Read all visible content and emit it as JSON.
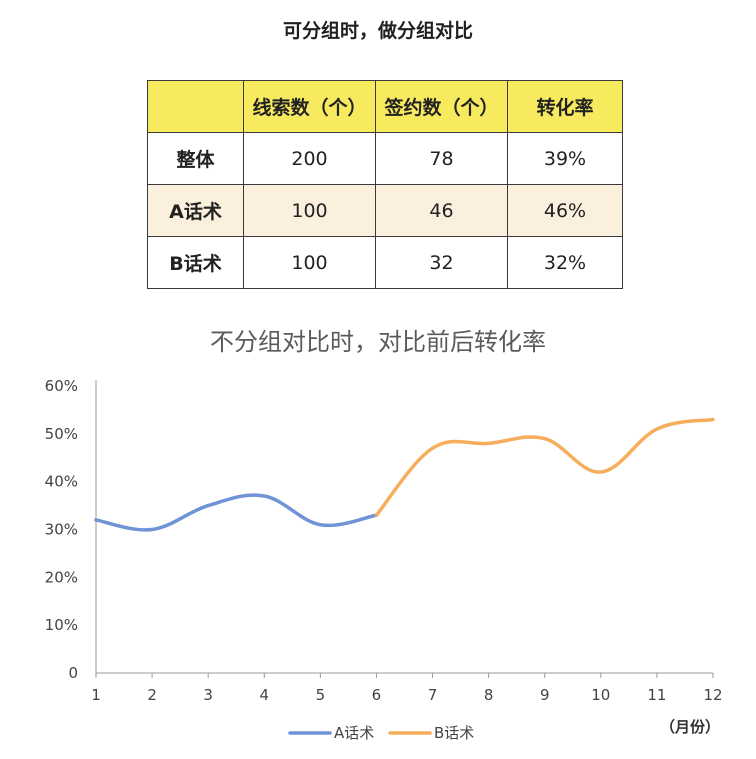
{
  "table": {
    "title": "可分组时，做分组对比",
    "headers": [
      "",
      "线索数（个）",
      "签约数（个）",
      "转化率"
    ],
    "rows": [
      {
        "label": "整体",
        "leads": "200",
        "signed": "78",
        "rate": "39%"
      },
      {
        "label": "A话术",
        "leads": "100",
        "signed": "46",
        "rate": "46%"
      },
      {
        "label": "B话术",
        "leads": "100",
        "signed": "32",
        "rate": "32%"
      }
    ]
  },
  "chart_data": {
    "type": "line",
    "title": "不分组对比时，对比前后转化率",
    "x": [
      1,
      2,
      3,
      4,
      5,
      6,
      7,
      8,
      9,
      10,
      11,
      12
    ],
    "x_unit": "（月份）",
    "y_ticks": [
      "0",
      "10%",
      "20%",
      "30%",
      "40%",
      "50%",
      "60%"
    ],
    "ylim": [
      0,
      60
    ],
    "series": [
      {
        "name": "A话术",
        "color": "#6f93d6",
        "x": [
          1,
          2,
          3,
          4,
          5,
          6
        ],
        "values": [
          32,
          30,
          35,
          37,
          31,
          33
        ]
      },
      {
        "name": "B话术",
        "color": "#f6ad5c",
        "x": [
          6,
          7,
          8,
          9,
          10,
          11,
          12
        ],
        "values": [
          33,
          47,
          48,
          49,
          42,
          51,
          53
        ]
      }
    ],
    "legend_placement": "bottom-center"
  }
}
